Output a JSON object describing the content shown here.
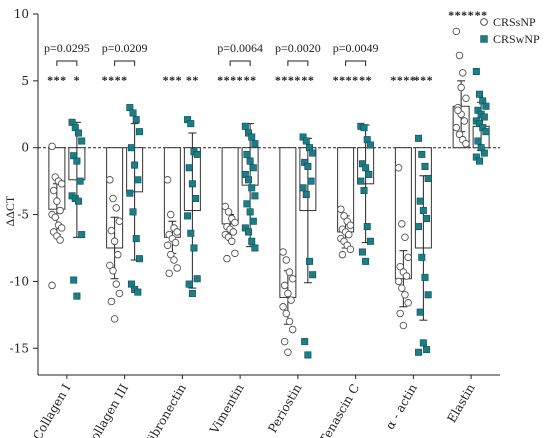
{
  "chart_data": {
    "type": "scatter",
    "ylabel": "ΔΔCT",
    "ylim": [
      -17,
      10
    ],
    "yticks": [
      10,
      5,
      0,
      -5,
      -10,
      -15
    ],
    "reference_line": 0,
    "categories": [
      "Collagen I",
      "Collagen III",
      "Fibronectin",
      "Vimentin",
      "Periostin",
      "Tenascin C",
      "α - actin",
      "Elastin"
    ],
    "legend": {
      "position": "top-right",
      "entries": [
        {
          "name": "CRSsNP",
          "marker": "circle-open",
          "color": "#ffffff",
          "edge": "#555555"
        },
        {
          "name": "CRSwNP",
          "marker": "square",
          "color": "#1c7d85",
          "edge": "#0e4e54"
        }
      ]
    },
    "series": [
      {
        "name": "CRSsNP",
        "marker": "circle",
        "bar_fill": "#ffffff",
        "means": [
          -4.6,
          -7.5,
          -6.7,
          -5.7,
          -11.2,
          -6.3,
          -9.8,
          3.1
        ],
        "sd": [
          1.9,
          2.3,
          1.2,
          0.7,
          2.0,
          1.2,
          2.1,
          1.9
        ],
        "points": [
          [
            0.1,
            -2.2,
            -2.5,
            -2.7,
            -3.2,
            -4.0,
            -4.7,
            -5.0,
            -5.2,
            -5.8,
            -6.0,
            -6.3,
            -6.6,
            -6.9,
            -10.3
          ],
          [
            -2.4,
            -3.8,
            -4.5,
            -5.5,
            -6.2,
            -7.0,
            -8.0,
            -8.8,
            -9.2,
            -10.2,
            -10.9,
            -11.5,
            -12.8
          ],
          [
            -2.4,
            -5.0,
            -6.0,
            -6.3,
            -6.5,
            -6.8,
            -7.1,
            -7.3,
            -8.0,
            -8.4,
            -9.0,
            -9.4
          ],
          [
            -4.4,
            -4.8,
            -5.3,
            -5.6,
            -5.9,
            -6.1,
            -6.3,
            -6.5,
            -6.7,
            -7.0,
            -7.9,
            -8.3
          ],
          [
            -7.8,
            -8.4,
            -9.3,
            -9.8,
            -10.3,
            -10.9,
            -11.4,
            -11.9,
            -12.4,
            -13.0,
            -13.6,
            -14.5,
            -15.3
          ],
          [
            -4.6,
            -5.1,
            -5.5,
            -5.8,
            -6.1,
            -6.3,
            -6.5,
            -6.8,
            -7.0,
            -7.3,
            -7.6,
            -8.0
          ],
          [
            -1.5,
            -5.7,
            -6.7,
            -8.2,
            -8.9,
            -9.3,
            -9.6,
            -10.0,
            -10.5,
            -11.0,
            -11.6,
            -12.4,
            -13.3
          ],
          [
            8.7,
            6.9,
            5.6,
            3.7,
            3.0,
            2.5,
            2.0,
            1.5,
            1.0,
            0.6,
            0.3,
            2.8,
            4.5
          ]
        ]
      },
      {
        "name": "CRSwNP",
        "marker": "square",
        "bar_fill": "#ffffff",
        "means": [
          -2.4,
          -3.3,
          -4.7,
          -2.8,
          -4.7,
          -2.7,
          -7.5,
          1.6
        ],
        "sd": [
          4.3,
          5.1,
          5.8,
          4.6,
          5.4,
          4.4,
          5.4,
          1.8
        ],
        "points": [
          [
            1.9,
            1.5,
            1.1,
            0.5,
            -0.6,
            -1.0,
            -2.5,
            -3.6,
            -3.8,
            -4.0,
            -6.5,
            -9.9,
            -11.1
          ],
          [
            3.0,
            2.6,
            2.1,
            1.2,
            0.0,
            -1.3,
            -2.4,
            -3.4,
            -4.8,
            -6.8,
            -8.3,
            -10.2,
            -10.6,
            -10.8
          ],
          [
            2.1,
            1.8,
            -0.3,
            -0.5,
            -1.5,
            -2.7,
            -3.8,
            -5.1,
            -6.4,
            -7.5,
            -9.8,
            -10.2,
            -10.9
          ],
          [
            1.6,
            1.1,
            0.8,
            0.3,
            -0.5,
            -1.0,
            -1.5,
            -2.0,
            -2.4,
            -3.0,
            -3.6,
            -4.2,
            -4.8,
            -5.5,
            -6.0,
            -6.3,
            -7.0,
            -7.5
          ],
          [
            0.8,
            0.5,
            0.0,
            -0.4,
            -1.1,
            -1.4,
            -2.5,
            -3.0,
            -3.5,
            -8.5,
            -9.5,
            -14.5,
            -15.5
          ],
          [
            1.6,
            1.5,
            0.6,
            0.2,
            -1.2,
            -1.5,
            -2.0,
            -2.5,
            -3.2,
            -5.9,
            -7.0,
            -7.8,
            -8.5
          ],
          [
            0.7,
            -0.5,
            -1.4,
            -2.3,
            -4.0,
            -4.7,
            -5.3,
            -5.9,
            -8.2,
            -9.7,
            -11.0,
            -12.3,
            -14.6,
            -15.1,
            -15.3
          ],
          [
            5.7,
            4.0,
            3.5,
            3.1,
            2.8,
            2.5,
            2.3,
            2.0,
            1.8,
            1.5,
            1.2,
            0.5,
            0.0,
            -0.4,
            -0.7,
            -1.0
          ]
        ]
      }
    ],
    "annotations": {
      "pvalues": [
        {
          "category": 0,
          "text": "p=0.0295"
        },
        {
          "category": 1,
          "text": "p=0.0209"
        },
        {
          "category": 3,
          "text": "p=0.0064"
        },
        {
          "category": 4,
          "text": "p=0.0020"
        },
        {
          "category": 5,
          "text": "p=0.0049"
        }
      ],
      "stars_row": [
        [
          "***",
          "*"
        ],
        [
          "****",
          ""
        ],
        [
          "***",
          "**"
        ],
        [
          "****",
          "**"
        ],
        [
          "****",
          "**"
        ],
        [
          "****",
          "**"
        ],
        [
          "****",
          "***"
        ],
        [
          "",
          ""
        ]
      ],
      "stars_top": [
        [
          "",
          ""
        ],
        [
          "",
          ""
        ],
        [
          "",
          ""
        ],
        [
          "",
          ""
        ],
        [
          "",
          ""
        ],
        [
          "",
          ""
        ],
        [
          "",
          ""
        ],
        [
          "****",
          "**"
        ]
      ]
    }
  }
}
